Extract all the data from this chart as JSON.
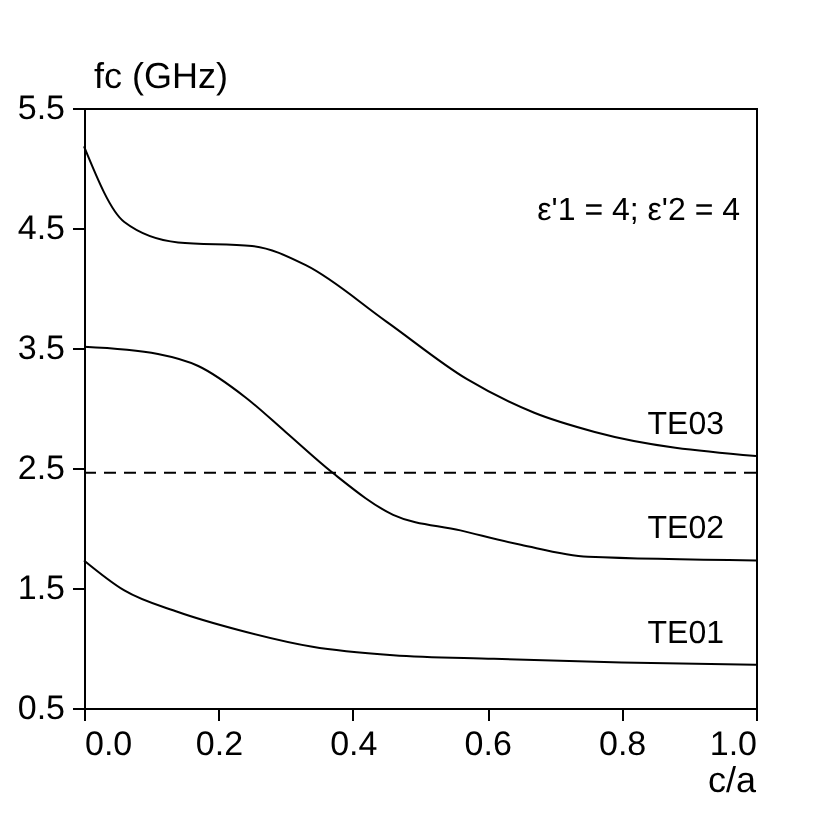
{
  "chart_data": {
    "type": "line",
    "xlabel": "c/a",
    "ylabel": "fc (GHz)",
    "annotations": [
      "ε'1 = 4; ε'2 = 4"
    ],
    "xlim": [
      0,
      1
    ],
    "xticks": [
      {
        "value": 0,
        "label": "0.0"
      },
      0.2,
      0.4,
      0.6,
      0.8,
      {
        "value": 1,
        "label": "1.0"
      }
    ],
    "ylim": [
      0.5,
      5.5
    ],
    "yticks": [
      0.5,
      1.5,
      2.5,
      3.5,
      4.5,
      5.5
    ],
    "grid": false,
    "legend": false,
    "line_style": "solid",
    "ref_lines": [
      {
        "axis": "y",
        "value": 2.46,
        "line_style": "dashed",
        "color": "#000000"
      }
    ],
    "series": [
      {
        "name": "TE03",
        "color": "#000000",
        "x": [
          0,
          0.06,
          0.14,
          0.25,
          0.33,
          0.45,
          0.57,
          0.67,
          0.76,
          1.0
        ],
        "values": [
          5.18,
          4.55,
          4.38,
          4.35,
          4.19,
          3.72,
          3.24,
          2.96,
          2.8,
          2.6
        ]
      },
      {
        "name": "TE02",
        "color": "#000000",
        "x": [
          0,
          0.11,
          0.17,
          0.24,
          0.3,
          0.37,
          0.46,
          0.56,
          0.65,
          0.75,
          1.0
        ],
        "values": [
          3.51,
          3.45,
          3.35,
          3.09,
          2.8,
          2.46,
          2.11,
          1.98,
          1.86,
          1.76,
          1.73
        ]
      },
      {
        "name": "TE01",
        "color": "#000000",
        "x": [
          0,
          0.06,
          0.14,
          0.23,
          0.34,
          0.46,
          0.61,
          0.8,
          1.0
        ],
        "values": [
          1.73,
          1.48,
          1.3,
          1.15,
          1.01,
          0.94,
          0.91,
          0.88,
          0.86
        ]
      }
    ]
  }
}
